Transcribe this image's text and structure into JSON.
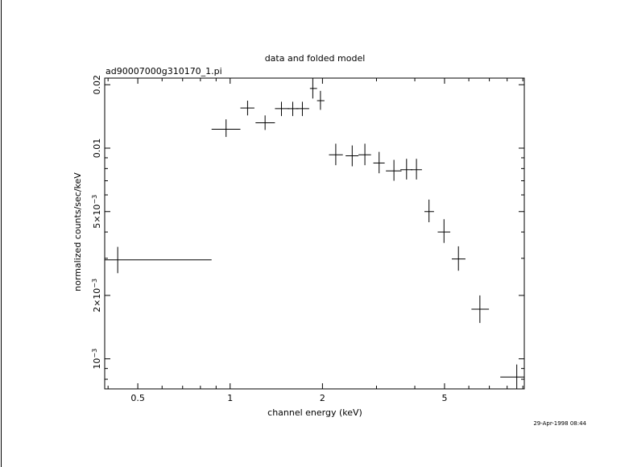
{
  "title": "data and folded model",
  "subtitle": "ad90007000g310170_1.pi",
  "timestamp": "29-Apr-1998 08:44",
  "chart_data": {
    "type": "scatter",
    "style": "crosses (error bars in x and y)",
    "xscale": "log",
    "yscale": "log",
    "xlabel": "channel energy (keV)",
    "ylabel": "normalized counts/sec/keV",
    "xlim": [
      0.39,
      9.1
    ],
    "ylim": [
      0.00072,
      0.0215
    ],
    "xticks": [
      {
        "v": 0.5,
        "label": "0.5"
      },
      {
        "v": 1,
        "label": "1"
      },
      {
        "v": 2,
        "label": "2"
      },
      {
        "v": 5,
        "label": "5"
      }
    ],
    "yticks": [
      {
        "v": 0.001,
        "base": "10",
        "exp": "−3"
      },
      {
        "v": 0.002,
        "base": "2×10",
        "exp": "−3"
      },
      {
        "v": 0.005,
        "base": "5×10",
        "exp": "−3"
      },
      {
        "v": 0.01,
        "base": "0.01",
        "exp": ""
      },
      {
        "v": 0.02,
        "base": "0.02",
        "exp": ""
      }
    ],
    "points": [
      {
        "x": 0.43,
        "xlo": 0.39,
        "xhi": 0.87,
        "y": 0.00295,
        "ylo": 0.00255,
        "yhi": 0.0034
      },
      {
        "x": 0.97,
        "xlo": 0.87,
        "xhi": 1.08,
        "y": 0.0123,
        "ylo": 0.0113,
        "yhi": 0.0137
      },
      {
        "x": 1.14,
        "xlo": 1.08,
        "xhi": 1.2,
        "y": 0.0155,
        "ylo": 0.0143,
        "yhi": 0.0168
      },
      {
        "x": 1.3,
        "xlo": 1.21,
        "xhi": 1.4,
        "y": 0.0132,
        "ylo": 0.0122,
        "yhi": 0.0143
      },
      {
        "x": 1.47,
        "xlo": 1.4,
        "xhi": 1.56,
        "y": 0.0154,
        "ylo": 0.0142,
        "yhi": 0.0166
      },
      {
        "x": 1.6,
        "xlo": 1.54,
        "xhi": 1.67,
        "y": 0.0154,
        "ylo": 0.0142,
        "yhi": 0.0166
      },
      {
        "x": 1.72,
        "xlo": 1.64,
        "xhi": 1.81,
        "y": 0.0154,
        "ylo": 0.0142,
        "yhi": 0.0166
      },
      {
        "x": 1.86,
        "xlo": 1.82,
        "xhi": 1.92,
        "y": 0.0192,
        "ylo": 0.0172,
        "yhi": 0.0215
      },
      {
        "x": 1.97,
        "xlo": 1.92,
        "xhi": 2.03,
        "y": 0.0168,
        "ylo": 0.0152,
        "yhi": 0.0187
      },
      {
        "x": 2.21,
        "xlo": 2.1,
        "xhi": 2.33,
        "y": 0.0093,
        "ylo": 0.0083,
        "yhi": 0.0105
      },
      {
        "x": 2.5,
        "xlo": 2.38,
        "xhi": 2.62,
        "y": 0.0092,
        "ylo": 0.0082,
        "yhi": 0.0103
      },
      {
        "x": 2.75,
        "xlo": 2.62,
        "xhi": 2.88,
        "y": 0.0093,
        "ylo": 0.0083,
        "yhi": 0.0105
      },
      {
        "x": 3.06,
        "xlo": 2.93,
        "xhi": 3.19,
        "y": 0.0085,
        "ylo": 0.0076,
        "yhi": 0.0096
      },
      {
        "x": 3.42,
        "xlo": 3.22,
        "xhi": 3.62,
        "y": 0.0078,
        "ylo": 0.007,
        "yhi": 0.0088
      },
      {
        "x": 3.76,
        "xlo": 3.59,
        "xhi": 3.93,
        "y": 0.0079,
        "ylo": 0.0071,
        "yhi": 0.0089
      },
      {
        "x": 4.05,
        "xlo": 3.88,
        "xhi": 4.22,
        "y": 0.0079,
        "ylo": 0.0071,
        "yhi": 0.0089
      },
      {
        "x": 4.45,
        "xlo": 4.3,
        "xhi": 4.62,
        "y": 0.005,
        "ylo": 0.00445,
        "yhi": 0.0057
      },
      {
        "x": 4.98,
        "xlo": 4.75,
        "xhi": 5.22,
        "y": 0.004,
        "ylo": 0.00355,
        "yhi": 0.0046
      },
      {
        "x": 5.55,
        "xlo": 5.28,
        "xhi": 5.85,
        "y": 0.00298,
        "ylo": 0.00262,
        "yhi": 0.00342
      },
      {
        "x": 6.52,
        "xlo": 6.12,
        "xhi": 6.98,
        "y": 0.00172,
        "ylo": 0.00148,
        "yhi": 0.002
      },
      {
        "x": 8.6,
        "xlo": 7.6,
        "xhi": 9.1,
        "y": 0.00082,
        "ylo": 0.00072,
        "yhi": 0.00094
      }
    ]
  }
}
